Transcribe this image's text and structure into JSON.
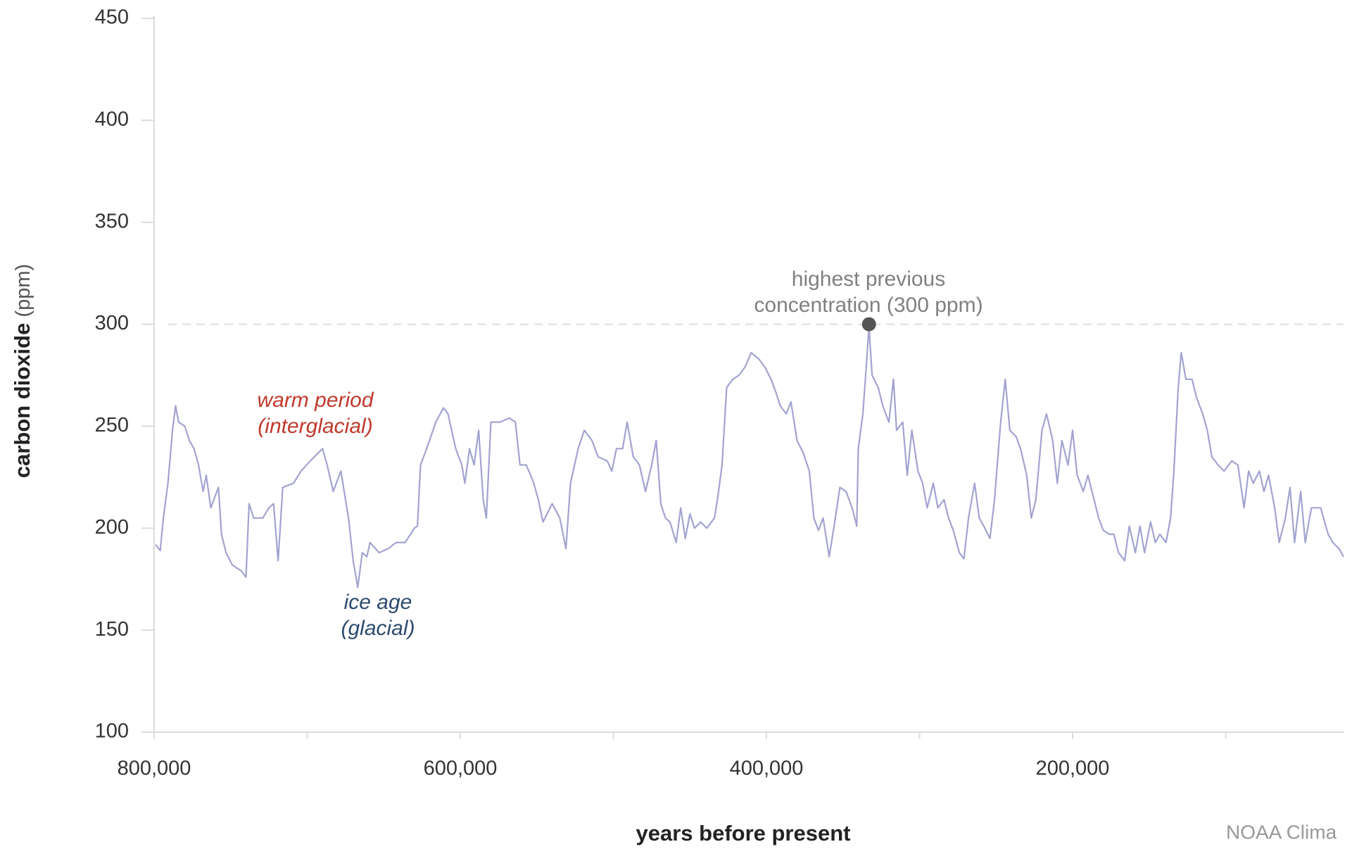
{
  "chart_data": {
    "type": "line",
    "ylabel": {
      "main": "carbon dioxide",
      "unit": "(ppm)"
    },
    "xlabel": "years before present",
    "source": "NOAA Clima",
    "color": "#a3a3d1",
    "xlim": [
      800000,
      23000
    ],
    "ylim": [
      100,
      450
    ],
    "xticks": [
      {
        "value": 800000,
        "label": "800,000"
      },
      {
        "value": 600000,
        "label": "600,000"
      },
      {
        "value": 400000,
        "label": "400,000"
      },
      {
        "value": 200000,
        "label": "200,000"
      }
    ],
    "xminor_ticks": [
      700000,
      500000,
      300000,
      100000
    ],
    "yticks": [
      100,
      150,
      200,
      250,
      300,
      350,
      400,
      450
    ],
    "reference_line": {
      "value": 300,
      "color": "#dddddd"
    },
    "highlight": {
      "x": 333000,
      "y": 300,
      "color": "#555555"
    },
    "annotations": [
      {
        "lines": [
          "warm period",
          "(interglacial)"
        ],
        "color": "#c0392b"
      },
      {
        "lines": [
          "ice age",
          "(glacial)"
        ],
        "color": "#2c4a6e"
      },
      {
        "lines": [
          "highest previous",
          "concentration (300 ppm)"
        ],
        "color": "#808080"
      }
    ],
    "x": [
      799000,
      796000,
      794000,
      791000,
      788000,
      786000,
      784000,
      780000,
      777000,
      774000,
      771000,
      768000,
      766000,
      763000,
      761000,
      758000,
      756000,
      753000,
      749000,
      745000,
      743000,
      740000,
      738000,
      735000,
      729000,
      725000,
      722000,
      719000,
      716000,
      709000,
      704000,
      698000,
      694000,
      690000,
      687000,
      683000,
      681000,
      678000,
      675000,
      673000,
      670000,
      667000,
      664000,
      661000,
      659000,
      653000,
      647000,
      642000,
      636000,
      630000,
      628000,
      626000,
      622000,
      616000,
      611000,
      608000,
      603000,
      599000,
      597000,
      594000,
      591000,
      588000,
      585000,
      583000,
      580000,
      574000,
      568000,
      564000,
      561000,
      557000,
      554000,
      552000,
      549000,
      546000,
      540000,
      535000,
      531000,
      528000,
      523000,
      519000,
      514000,
      510000,
      504000,
      501000,
      498000,
      494000,
      491000,
      487000,
      483000,
      479000,
      475000,
      472000,
      469000,
      466000,
      463000,
      459000,
      456000,
      453000,
      450000,
      447000,
      443000,
      439000,
      434000,
      432000,
      429000,
      426000,
      422000,
      418000,
      414000,
      410000,
      405000,
      401000,
      397000,
      394000,
      391000,
      387000,
      384000,
      380000,
      376000,
      372000,
      369000,
      366000,
      363000,
      359000,
      355000,
      352000,
      348000,
      344000,
      341000,
      340000,
      337000,
      335000,
      333000,
      331000,
      327000,
      324000,
      320000,
      317000,
      315000,
      311000,
      308000,
      305000,
      301000,
      298000,
      295000,
      291000,
      288000,
      284000,
      281000,
      278000,
      274000,
      271000,
      268000,
      264000,
      261000,
      258000,
      254000,
      251000,
      247000,
      244000,
      241000,
      237000,
      234000,
      230000,
      227000,
      224000,
      220000,
      217000,
      213000,
      210000,
      207000,
      203000,
      200000,
      197000,
      193000,
      190000,
      186000,
      183000,
      180000,
      176000,
      173000,
      170000,
      166000,
      163000,
      159000,
      156000,
      153000,
      149000,
      146000,
      143000,
      139000,
      136000,
      134000,
      131000,
      129000,
      126000,
      122000,
      119000,
      115000,
      112000,
      109000,
      105000,
      101000,
      96000,
      92000,
      88000,
      85000,
      82000,
      78000,
      75000,
      72000,
      68000,
      65000,
      61000,
      58000,
      55000,
      51000,
      48000,
      44000,
      38000,
      33000,
      30000,
      26000,
      23000
    ],
    "values": [
      192,
      189,
      205,
      222,
      248,
      260,
      252,
      250,
      243,
      239,
      231,
      218,
      226,
      210,
      214,
      220,
      197,
      188,
      182,
      180,
      179,
      176,
      212,
      205,
      205,
      210,
      212,
      184,
      220,
      222,
      228,
      233,
      236,
      239,
      231,
      218,
      222,
      228,
      214,
      205,
      184,
      171,
      188,
      186,
      193,
      188,
      190,
      193,
      193,
      200,
      201,
      231,
      239,
      252,
      259,
      256,
      239,
      231,
      222,
      239,
      231,
      248,
      214,
      205,
      252,
      252,
      254,
      252,
      231,
      231,
      226,
      222,
      214,
      203,
      212,
      205,
      190,
      222,
      239,
      248,
      243,
      235,
      233,
      228,
      239,
      239,
      252,
      235,
      231,
      218,
      231,
      243,
      212,
      205,
      203,
      193,
      210,
      195,
      207,
      200,
      203,
      200,
      205,
      214,
      231,
      269,
      273,
      275,
      279,
      286,
      283,
      279,
      273,
      267,
      260,
      256,
      262,
      243,
      237,
      228,
      205,
      199,
      205,
      186,
      205,
      220,
      218,
      210,
      201,
      239,
      256,
      277,
      299,
      275,
      269,
      260,
      252,
      273,
      248,
      252,
      226,
      248,
      228,
      222,
      210,
      222,
      210,
      214,
      205,
      199,
      188,
      185,
      205,
      222,
      205,
      201,
      195,
      214,
      252,
      273,
      248,
      245,
      239,
      226,
      205,
      214,
      248,
      256,
      243,
      222,
      243,
      231,
      248,
      226,
      218,
      226,
      214,
      205,
      199,
      197,
      197,
      188,
      184,
      201,
      188,
      201,
      188,
      203,
      193,
      197,
      193,
      205,
      226,
      269,
      286,
      273,
      273,
      264,
      256,
      248,
      235,
      231,
      228,
      233,
      231,
      210,
      228,
      222,
      228,
      218,
      226,
      210,
      193,
      205,
      220,
      193,
      218,
      193,
      210,
      210,
      197,
      193,
      190,
      186
    ]
  }
}
